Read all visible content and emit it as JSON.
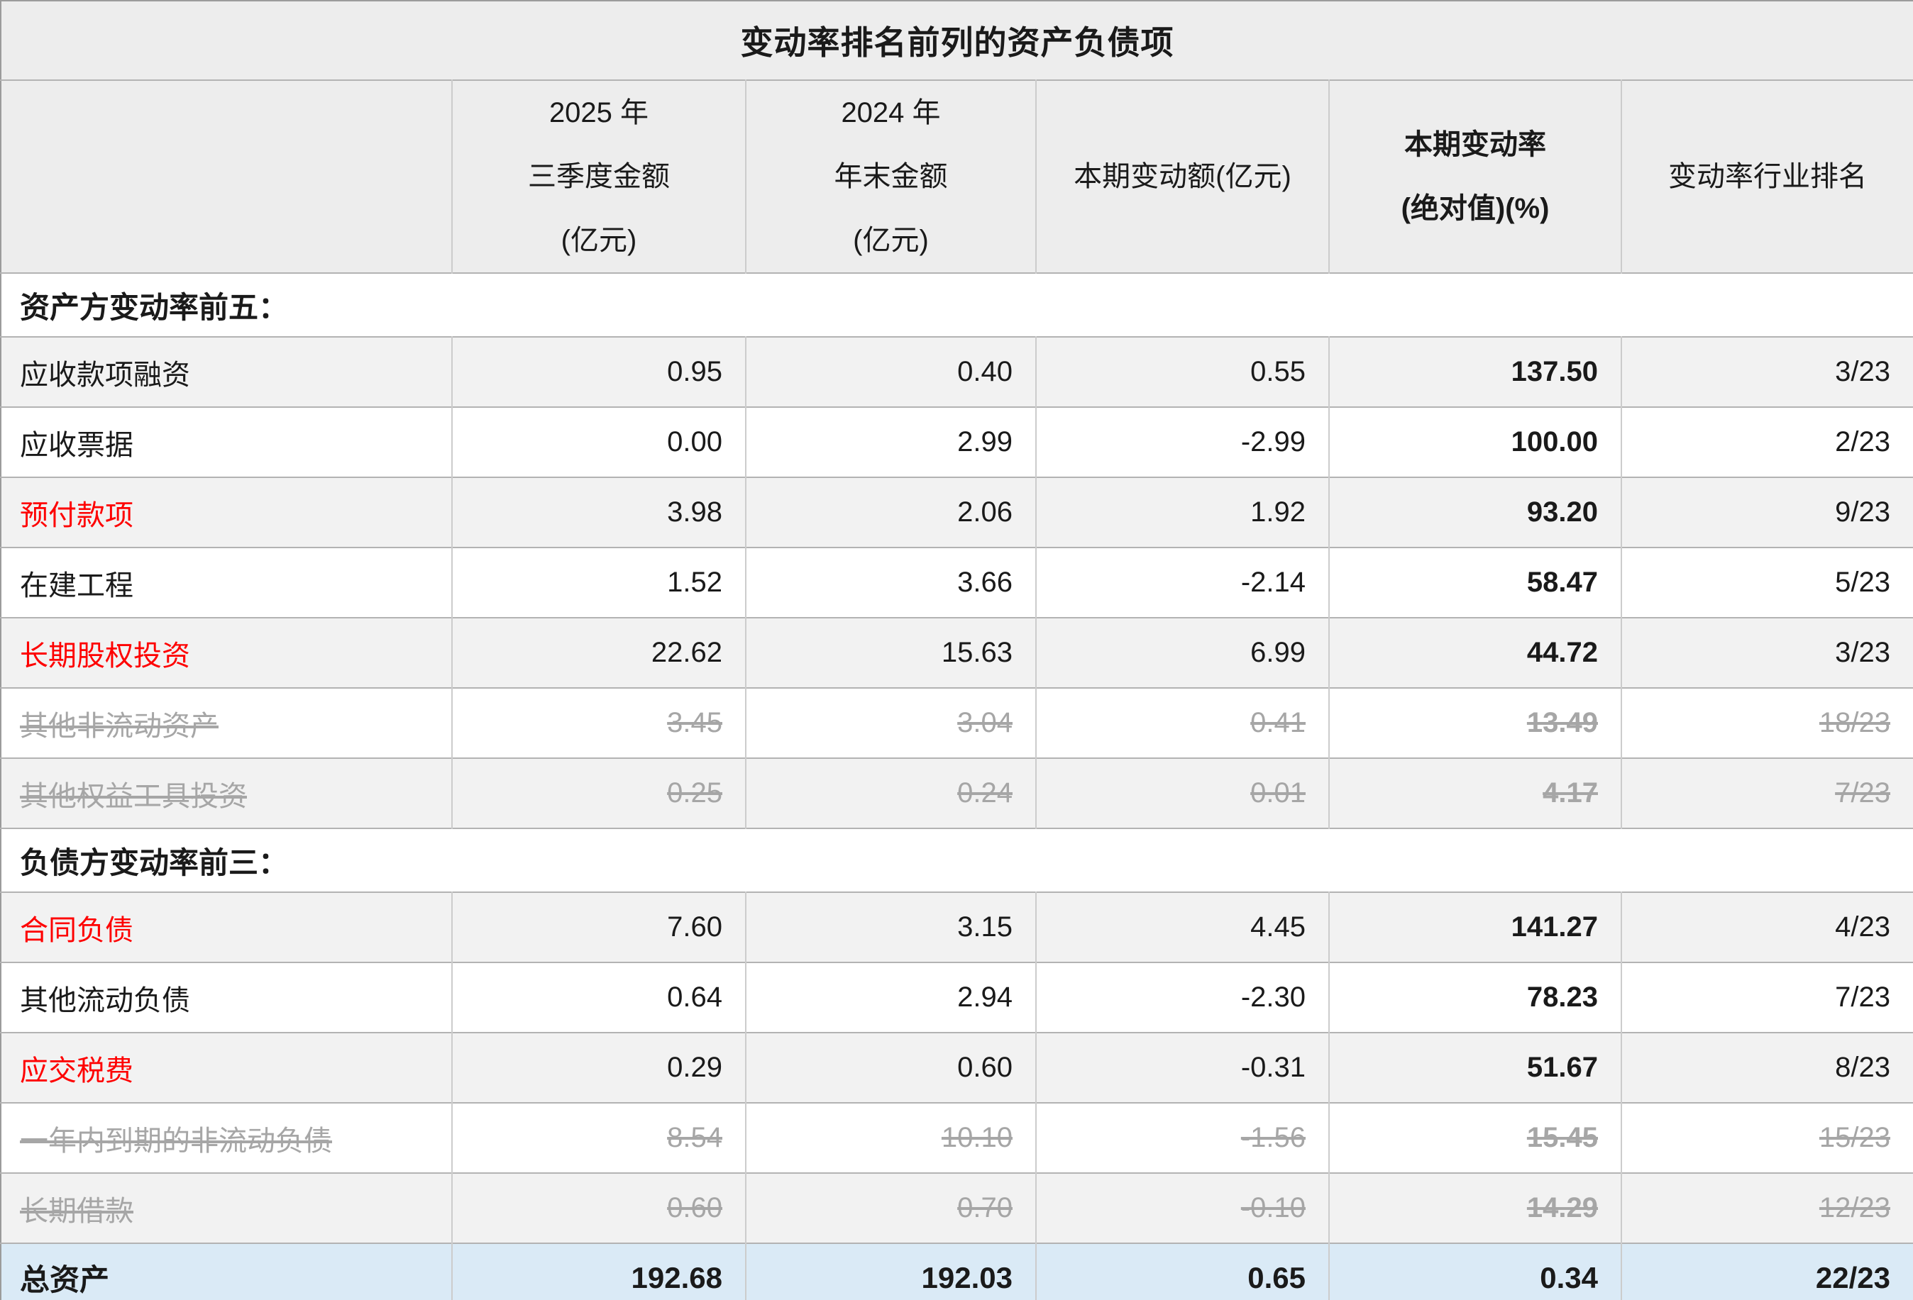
{
  "title": "变动率排名前列的资产负债项",
  "columns": [
    {
      "lines": [],
      "bold": false
    },
    {
      "lines": [
        "2025 年",
        "三季度金额",
        "(亿元)"
      ],
      "bold": false
    },
    {
      "lines": [
        "2024 年",
        "年末金额",
        "(亿元)"
      ],
      "bold": false
    },
    {
      "lines": [
        "本期变动额(亿元)"
      ],
      "bold": false
    },
    {
      "lines": [
        "本期变动率",
        "(绝对值)(%)"
      ],
      "bold": true
    },
    {
      "lines": [
        "变动率行业排名"
      ],
      "bold": false
    }
  ],
  "sections": [
    {
      "header": "资产方变动率前五：",
      "rows": [
        {
          "name": "应收款项融资",
          "style": "normal",
          "values": [
            "0.95",
            "0.40",
            "0.55",
            "137.50",
            "3/23"
          ]
        },
        {
          "name": "应收票据",
          "style": "normal",
          "values": [
            "0.00",
            "2.99",
            "-2.99",
            "100.00",
            "2/23"
          ]
        },
        {
          "name": "预付款项",
          "style": "red",
          "values": [
            "3.98",
            "2.06",
            "1.92",
            "93.20",
            "9/23"
          ]
        },
        {
          "name": "在建工程",
          "style": "normal",
          "values": [
            "1.52",
            "3.66",
            "-2.14",
            "58.47",
            "5/23"
          ]
        },
        {
          "name": "长期股权投资",
          "style": "red",
          "values": [
            "22.62",
            "15.63",
            "6.99",
            "44.72",
            "3/23"
          ]
        },
        {
          "name": "其他非流动资产",
          "style": "strike",
          "values": [
            "3.45",
            "3.04",
            "0.41",
            "13.49",
            "18/23"
          ]
        },
        {
          "name": "其他权益工具投资",
          "style": "strike",
          "values": [
            "0.25",
            "0.24",
            "0.01",
            "4.17",
            "7/23"
          ]
        }
      ]
    },
    {
      "header": "负债方变动率前三：",
      "rows": [
        {
          "name": "合同负债",
          "style": "red",
          "values": [
            "7.60",
            "3.15",
            "4.45",
            "141.27",
            "4/23"
          ]
        },
        {
          "name": "其他流动负债",
          "style": "normal",
          "values": [
            "0.64",
            "2.94",
            "-2.30",
            "78.23",
            "7/23"
          ]
        },
        {
          "name": "应交税费",
          "style": "red",
          "values": [
            "0.29",
            "0.60",
            "-0.31",
            "51.67",
            "8/23"
          ]
        },
        {
          "name": "一年内到期的非流动负债",
          "style": "strike",
          "values": [
            "8.54",
            "10.10",
            "-1.56",
            "15.45",
            "15/23"
          ]
        },
        {
          "name": "长期借款",
          "style": "strike",
          "values": [
            "0.60",
            "0.70",
            "-0.10",
            "14.29",
            "12/23"
          ]
        }
      ]
    }
  ],
  "total_row": {
    "name": "总资产",
    "values": [
      "192.68",
      "192.03",
      "0.65",
      "0.34",
      "22/23"
    ]
  },
  "colors": {
    "accent_red": "#fe0000",
    "muted_gray": "#a6a6a6",
    "zebra_bg": "#f2f2f2",
    "header_bg": "#ededed",
    "total_bg": "#daeaf6"
  }
}
